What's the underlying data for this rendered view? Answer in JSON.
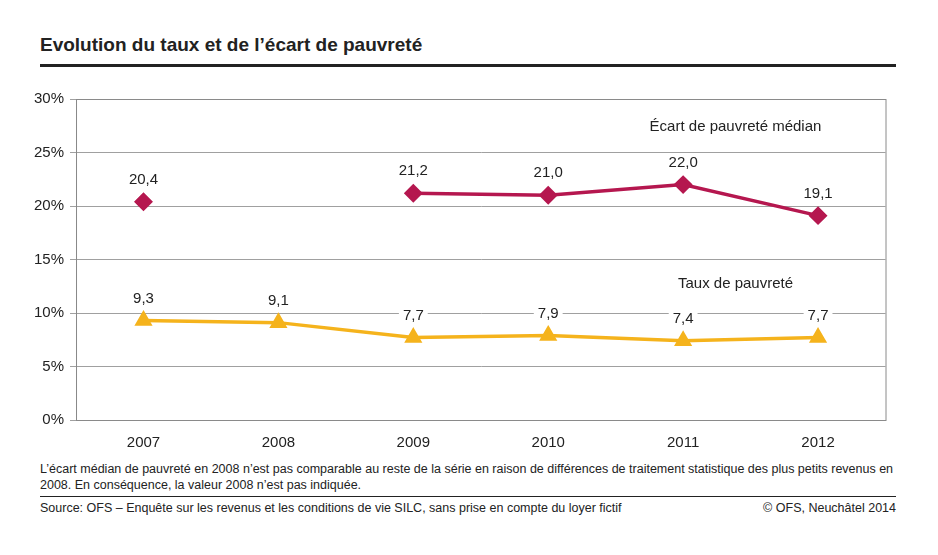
{
  "chart_data": {
    "type": "line",
    "title": "Evolution du taux et de l’écart de pauvreté",
    "categories": [
      "2007",
      "2008",
      "2009",
      "2010",
      "2011",
      "2012"
    ],
    "series": [
      {
        "name": "Écart de pauvreté médian",
        "color": "#b5174f",
        "marker": "diamond",
        "values": [
          20.4,
          null,
          21.2,
          21.0,
          22.0,
          19.1
        ],
        "value_labels": [
          "20,4",
          null,
          "21,2",
          "21,0",
          "22,0",
          "19,1"
        ]
      },
      {
        "name": "Taux de pauvreté",
        "color": "#f5b31c",
        "marker": "triangle",
        "values": [
          9.3,
          9.1,
          7.7,
          7.9,
          7.4,
          7.7
        ],
        "value_labels": [
          "9,3",
          "9,1",
          "7,7",
          "7,9",
          "7,4",
          "7,7"
        ]
      }
    ],
    "ylim": [
      0,
      30
    ],
    "yticks": [
      {
        "value": 0,
        "label": "0%"
      },
      {
        "value": 5,
        "label": "5%"
      },
      {
        "value": 10,
        "label": "10%"
      },
      {
        "value": 15,
        "label": "15%"
      },
      {
        "value": 20,
        "label": "20%"
      },
      {
        "value": 25,
        "label": "25%"
      },
      {
        "value": 30,
        "label": "30%"
      }
    ],
    "grid": true,
    "data_labels": true,
    "notes": "L’écart médian de pauvreté en 2008 n’est pas comparable au reste de la série en raison de différences de traitement statistique des plus petits revenus en 2008. En conséquence, la valeur 2008 n’est pas indiquée.",
    "source": "Source: OFS – Enquête sur les revenus et les conditions de vie SILC, sans prise en compte du loyer fictif",
    "copyright": "© OFS, Neuchâtel 2014"
  }
}
